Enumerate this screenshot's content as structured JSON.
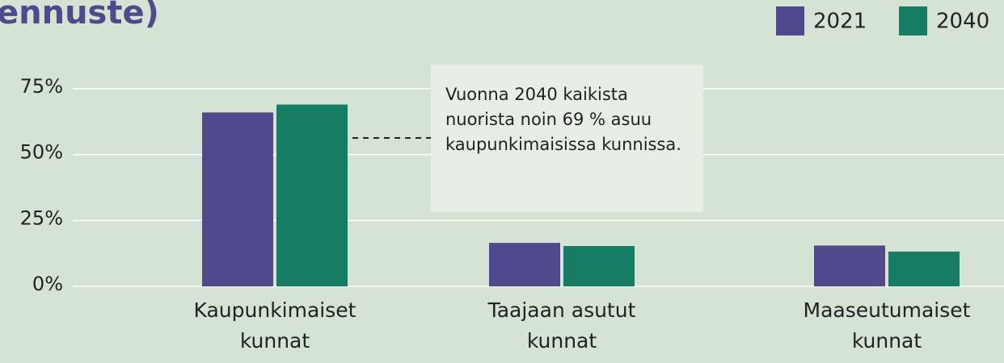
{
  "chart_data": {
    "type": "bar",
    "title": "ennuste)",
    "annotation": "Vuonna 2040 kaikista nuorista noin 69 % asuu kaupunkimaisissa kunnissa.",
    "categories": [
      "Kaupunkimaiset kunnat",
      "Taajaan asutut kunnat",
      "Maaseutumaiset kunnat"
    ],
    "series": [
      {
        "name": "2021",
        "color": "#4e4a8c",
        "values": [
          66,
          16.5,
          15.5
        ]
      },
      {
        "name": "2040",
        "color": "#167c63",
        "values": [
          69,
          15.3,
          13.2
        ]
      }
    ],
    "ylim": [
      0,
      75
    ],
    "yticks": [
      {
        "value": 0,
        "label": "0%"
      },
      {
        "value": 25,
        "label": "25%"
      },
      {
        "value": 50,
        "label": "50%"
      },
      {
        "value": 75,
        "label": "75%"
      }
    ],
    "grid": true,
    "legend": "top-right"
  }
}
